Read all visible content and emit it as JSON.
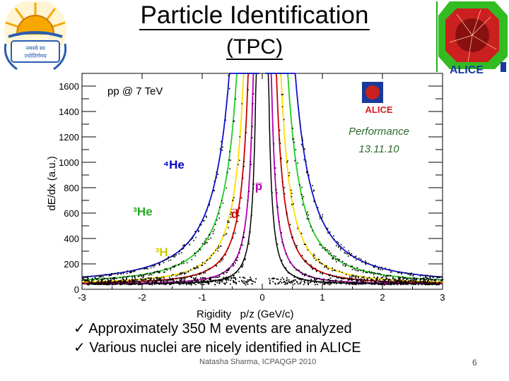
{
  "slide": {
    "title": "Particle Identification",
    "subtitle": "(TPC)",
    "bullets": [
      "Approximately 350 M events are analyzed",
      "Various nuclei are nicely identified in ALICE"
    ],
    "bullet_marker": "✓",
    "footer": "Natasha Sharma, ICPAQGP 2010",
    "page_number": "6",
    "logo_left_text": [
      "नमस्ये स्य",
      "ज्योतिर्गमय"
    ],
    "logo_right_text": "ALICE"
  },
  "chart_data": {
    "type": "scatter",
    "title": "pp @ 7 TeV",
    "xlabel": "Rigidity   p/z (GeV/c)",
    "ylabel": "dE/dx (a.u.)",
    "xlim": [
      -3,
      3
    ],
    "ylim": [
      0,
      1700
    ],
    "xticks": [
      "-3",
      "-2",
      "-1",
      "0",
      "1",
      "2",
      "3"
    ],
    "yticks": [
      "0",
      "200",
      "400",
      "600",
      "800",
      "1000",
      "1200",
      "1400",
      "1600"
    ],
    "ytick_values": [
      0,
      200,
      400,
      600,
      800,
      1000,
      1200,
      1400,
      1600
    ],
    "xtick_values": [
      -3,
      -2,
      -1,
      0,
      1,
      2,
      3
    ],
    "badge": {
      "experiment": "ALICE",
      "line1": "Performance",
      "line2": "13.11.10"
    },
    "particle_labels": [
      {
        "text": "⁴He",
        "x": -1.65,
        "y": 950,
        "color": "#0000cc"
      },
      {
        "text": "p̅",
        "x": -0.12,
        "y": 780,
        "color": "#b000b0"
      },
      {
        "text": "³He",
        "x": -2.15,
        "y": 580,
        "color": "#22aa22"
      },
      {
        "text": "d̅",
        "x": -0.52,
        "y": 560,
        "color": "#cc0000"
      },
      {
        "text": "³H",
        "x": -1.78,
        "y": 260,
        "color": "#cccc00"
      }
    ],
    "series": [
      {
        "name": "pion/kaon band",
        "color": "#000000",
        "amplitude": 18
      },
      {
        "name": "p",
        "color": "#b000b0",
        "amplitude": 38
      },
      {
        "name": "d",
        "color": "#cc0000",
        "amplitude": 92
      },
      {
        "name": "t (3H)",
        "color": "#ffdd00",
        "amplitude": 160
      },
      {
        "name": "3He",
        "color": "#22cc22",
        "amplitude": 300
      },
      {
        "name": "4He",
        "color": "#1010cc",
        "amplitude": 500
      }
    ]
  }
}
